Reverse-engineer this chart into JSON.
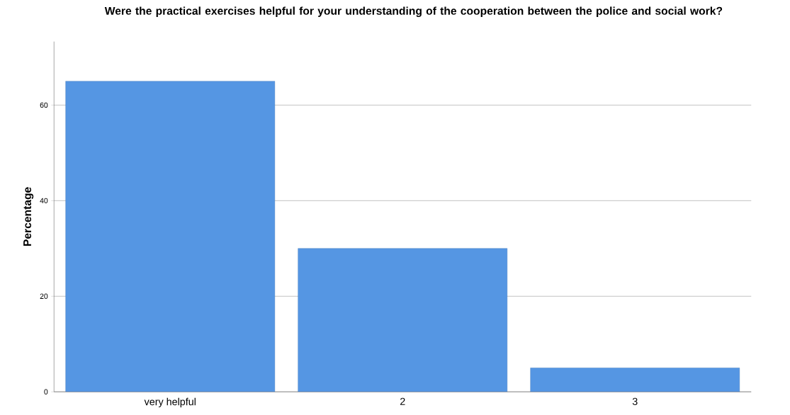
{
  "chart_data": {
    "type": "bar",
    "title": "Were the practical exercises helpful for your understanding of the cooperation between the police and social work?",
    "ylabel": "Percentage",
    "categories": [
      "very helpful",
      "2",
      "3"
    ],
    "values": [
      65,
      30,
      5
    ],
    "color": "#5596e3",
    "ylim": [
      0,
      73.3
    ],
    "yticks": [
      0,
      20,
      40,
      60
    ],
    "grid": "y"
  }
}
